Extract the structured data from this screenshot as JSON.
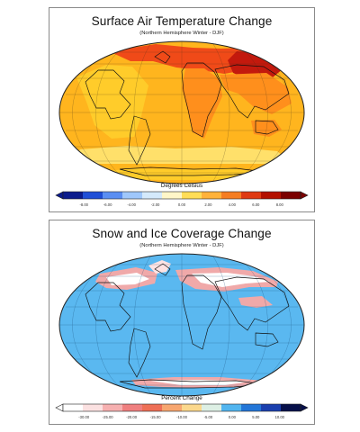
{
  "panels": [
    {
      "title": "Surface Air Temperature Change",
      "subtitle": "(Northern Hemisphere Winter - DJF)",
      "legend_title": "Degrees Celsius",
      "ticks": [
        "-8.00",
        "-6.00",
        "-4.00",
        "-2.00",
        "0.00",
        "2.00",
        "4.00",
        "6.00",
        "8.00"
      ],
      "scale_colors": [
        "#0b1b8c",
        "#1f4ed6",
        "#5a8ef2",
        "#9fc7fb",
        "#d4e9fb",
        "#fff6c8",
        "#ffdd57",
        "#ffb23a",
        "#f57d22",
        "#df3a12",
        "#b31000",
        "#7b0000"
      ],
      "map_colors": {
        "ocean": "#ffb51e",
        "warm": "#ff8f1c",
        "hot": "#f04a18",
        "hottest": "#c3190d",
        "land": "#ffcc2a",
        "cool": "#ffe06a"
      }
    },
    {
      "title": "Snow and Ice Coverage Change",
      "subtitle": "(Northern Hemisphere Winter - DJF)",
      "legend_title": "Percent Change",
      "ticks": [
        "-30.00",
        "-25.00",
        "-20.00",
        "-15.00",
        "-10.00",
        "-5.00",
        "0.00",
        "5.00",
        "10.00"
      ],
      "scale_colors": [
        "#ffffff",
        "#fbe1e1",
        "#f6b0b0",
        "#ef7f7f",
        "#ee6f56",
        "#f7a66f",
        "#fbd88c",
        "#ddefe4",
        "#52b5ef",
        "#2376d8",
        "#1a3fae",
        "#07104a"
      ],
      "map_colors": {
        "ocean": "#5ab8f0",
        "land": "#5ab8f0",
        "loss_strong": "#f0a9a9",
        "loss_mid": "#ffe3e3",
        "loss_white": "#ffffff",
        "edge": "#d6d9de"
      }
    }
  ]
}
